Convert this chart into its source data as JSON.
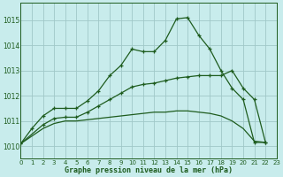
{
  "background_color": "#c8ecec",
  "grid_color": "#a0c8c8",
  "line_color": "#1e5c1e",
  "title": "Graphe pression niveau de la mer (hPa)",
  "xlim": [
    0,
    23
  ],
  "ylim": [
    1009.5,
    1015.7
  ],
  "xticks": [
    0,
    1,
    2,
    3,
    4,
    5,
    6,
    7,
    8,
    9,
    10,
    11,
    12,
    13,
    14,
    15,
    16,
    17,
    18,
    19,
    20,
    21,
    22,
    23
  ],
  "yticks": [
    1010,
    1011,
    1012,
    1013,
    1014,
    1015
  ],
  "line1_x": [
    0,
    1,
    2,
    3,
    4,
    5,
    6,
    7,
    8,
    9,
    10,
    11,
    12,
    13,
    14,
    15,
    16,
    17,
    18,
    19,
    20,
    21,
    22
  ],
  "line1_y": [
    1010.1,
    1010.7,
    1011.2,
    1011.5,
    1011.5,
    1011.5,
    1011.8,
    1012.2,
    1012.8,
    1013.2,
    1013.85,
    1013.75,
    1013.75,
    1014.2,
    1015.05,
    1015.1,
    1014.4,
    1013.85,
    1013.0,
    1012.3,
    1011.85,
    1010.15,
    1010.15
  ],
  "line2_x": [
    0,
    2,
    3,
    4,
    5,
    6,
    7,
    8,
    9,
    10,
    11,
    12,
    13,
    14,
    15,
    16,
    17,
    18,
    19,
    20,
    21,
    22
  ],
  "line2_y": [
    1010.1,
    1010.85,
    1011.1,
    1011.15,
    1011.15,
    1011.35,
    1011.6,
    1011.85,
    1012.1,
    1012.35,
    1012.45,
    1012.5,
    1012.6,
    1012.7,
    1012.75,
    1012.8,
    1012.8,
    1012.8,
    1013.0,
    1012.3,
    1011.85,
    1010.15
  ],
  "line3_x": [
    0,
    2,
    3,
    4,
    5,
    6,
    7,
    8,
    9,
    10,
    11,
    12,
    13,
    14,
    15,
    16,
    17,
    18,
    19,
    20,
    21,
    22
  ],
  "line3_y": [
    1010.1,
    1010.7,
    1010.9,
    1011.0,
    1011.0,
    1011.05,
    1011.1,
    1011.15,
    1011.2,
    1011.25,
    1011.3,
    1011.35,
    1011.35,
    1011.4,
    1011.4,
    1011.35,
    1011.3,
    1011.2,
    1011.0,
    1010.7,
    1010.2,
    1010.15
  ]
}
